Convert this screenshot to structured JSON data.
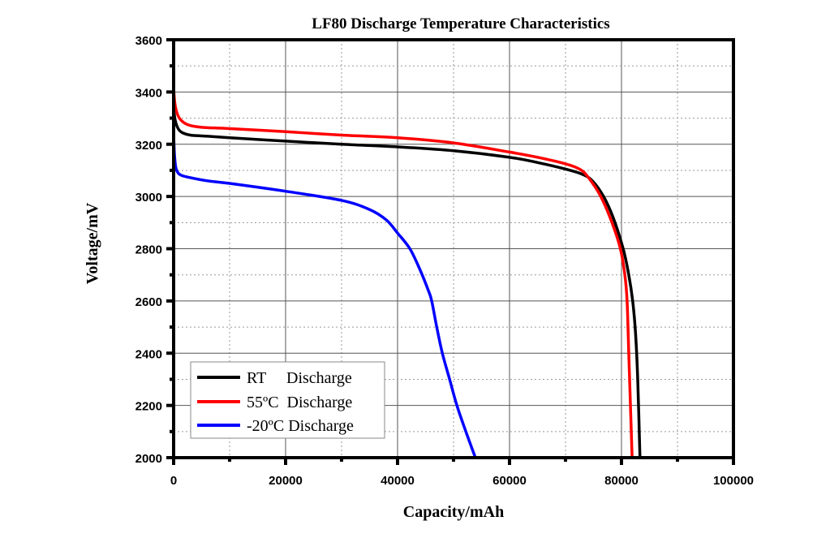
{
  "chart_data": {
    "type": "line",
    "title": "LF80 Discharge Temperature Characteristics",
    "xlabel": "Capacity/mAh",
    "ylabel": "Voltage/mV",
    "xlim": [
      0,
      100000
    ],
    "ylim": [
      2000,
      3600
    ],
    "xticks": [
      0,
      20000,
      40000,
      60000,
      80000,
      100000
    ],
    "yticks": [
      2000,
      2200,
      2400,
      2600,
      2800,
      3000,
      3200,
      3400,
      3600
    ],
    "grid": true,
    "legend_position": "bottom-left",
    "series": [
      {
        "name": "RT     Discharge",
        "color": "#000000",
        "x": [
          0,
          300,
          800,
          1500,
          3000,
          5000,
          10000,
          20000,
          30000,
          40000,
          50000,
          60000,
          65000,
          70000,
          73000,
          74800,
          76800,
          78500,
          80300,
          81300,
          82000,
          82500,
          82900,
          83300
        ],
        "y": [
          3335,
          3290,
          3260,
          3245,
          3235,
          3232,
          3225,
          3212,
          3200,
          3190,
          3175,
          3150,
          3130,
          3105,
          3085,
          3060,
          3000,
          2920,
          2800,
          2700,
          2600,
          2480,
          2300,
          2000
        ]
      },
      {
        "name": "55ºC  Discharge",
        "color": "#ff0000",
        "x": [
          0,
          200,
          600,
          1200,
          2500,
          5000,
          10000,
          20000,
          30000,
          40000,
          50000,
          60000,
          65000,
          70000,
          72500,
          74000,
          76300,
          78300,
          79800,
          80600,
          81000,
          81300,
          81600,
          81900
        ],
        "y": [
          3415,
          3360,
          3320,
          3295,
          3275,
          3265,
          3260,
          3248,
          3235,
          3225,
          3205,
          3170,
          3150,
          3125,
          3105,
          3075,
          3000,
          2900,
          2800,
          2700,
          2600,
          2400,
          2200,
          2000
        ]
      },
      {
        "name": "-20ºC Discharge",
        "color": "#0000ff",
        "x": [
          0,
          150,
          400,
          800,
          1500,
          3000,
          6000,
          10000,
          20000,
          30000,
          35000,
          38000,
          40000,
          42200,
          44000,
          45500,
          46100,
          47000,
          48000,
          49300,
          50600,
          52200,
          53900
        ],
        "y": [
          3240,
          3160,
          3110,
          3090,
          3080,
          3072,
          3060,
          3050,
          3020,
          2985,
          2950,
          2910,
          2860,
          2800,
          2720,
          2640,
          2600,
          2500,
          2400,
          2300,
          2200,
          2100,
          2000
        ]
      }
    ]
  }
}
